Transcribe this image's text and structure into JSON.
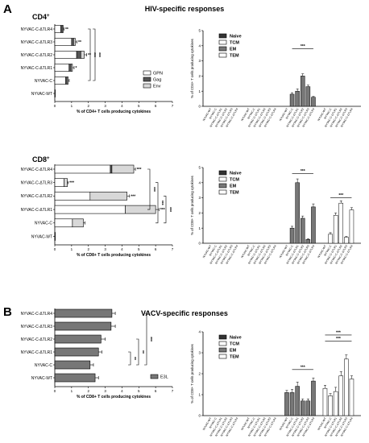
{
  "figure": {
    "sections": [
      {
        "letter": "A",
        "heading": "HIV-specific responses"
      },
      {
        "letter": "B",
        "heading": "VACV-specific responses"
      }
    ]
  },
  "chart_data": [
    {
      "id": "cd4-hbar",
      "type": "bar",
      "orientation": "horizontal",
      "stacked": true,
      "title": "CD4+",
      "xlabel": "% of CD4+ T cells producing cytokines",
      "xlim": [
        0,
        7
      ],
      "xticks": [
        "0",
        "1",
        "2",
        "3",
        "4",
        "5",
        "6",
        "7"
      ],
      "categories": [
        "NYVAC-C-ΔTLR4",
        "NYVAC-C-ΔTLR3",
        "NYVAC-C-ΔTLR2",
        "NYVAC-C-ΔTLR1",
        "NYVAC-C",
        "NYVAC-WT"
      ],
      "series": [
        {
          "name": "GPN",
          "color": "#ffffff",
          "values": [
            0.35,
            1.0,
            1.3,
            0.85,
            0.65,
            0.02
          ]
        },
        {
          "name": "Gag",
          "color": "#555555",
          "values": [
            0.1,
            0.12,
            0.25,
            0.12,
            0.08,
            0.0
          ]
        },
        {
          "name": "Env",
          "color": "#d8d8d8",
          "values": [
            0.05,
            0.1,
            0.2,
            0.08,
            0.07,
            0.0
          ]
        }
      ],
      "errors": [
        0.05,
        0.1,
        0.15,
        0.1,
        0.06,
        0.0
      ],
      "bar_marks": [
        "**",
        "**",
        "**",
        "*",
        "",
        ""
      ],
      "brackets": [
        "***",
        "***"
      ],
      "legend": "right"
    },
    {
      "id": "cd4-memory",
      "type": "bar",
      "ylabel": "% of CD4+ T cells producing cytokines",
      "ylim": [
        0,
        5
      ],
      "yticks": [
        "0",
        "1",
        "2",
        "3",
        "4",
        "5"
      ],
      "categories": [
        "NYVAC-WT",
        "NYVAC-C",
        "NYVAC-C-ΔTLR1",
        "NYVAC-C-ΔTLR2",
        "NYVAC-C-ΔTLR3",
        "NYVAC-C-ΔTLR4"
      ],
      "series": [
        {
          "name": "Naive",
          "color": "#333333",
          "values": [
            0,
            0,
            0,
            0,
            0,
            0
          ]
        },
        {
          "name": "TCM",
          "color": "#ffffff",
          "values": [
            0,
            0,
            0,
            0,
            0,
            0
          ]
        },
        {
          "name": "EM",
          "color": "#777777",
          "values": [
            0,
            0.8,
            1.0,
            2.0,
            1.3,
            0.6
          ]
        },
        {
          "name": "TEM",
          "color": "#ffffff",
          "values": [
            0,
            0,
            0,
            0,
            0,
            0
          ]
        }
      ],
      "errors": {
        "EM": [
          0,
          0.1,
          0.15,
          0.15,
          0.1,
          0.05
        ]
      },
      "brackets": [
        "***"
      ],
      "legend": "top-left"
    },
    {
      "id": "cd8-hbar",
      "type": "bar",
      "orientation": "horizontal",
      "stacked": true,
      "title": "CD8+",
      "xlabel": "% of CD8+ T cells producing cytokines",
      "xlim": [
        0,
        7
      ],
      "xticks": [
        "0",
        "1",
        "2",
        "3",
        "4",
        "5",
        "6",
        "7"
      ],
      "categories": [
        "NYVAC-C-ΔTLR4",
        "NYVAC-C-ΔTLR3",
        "NYVAC-C-ΔTLR2",
        "NYVAC-C-ΔTLR1",
        "NYVAC-C",
        "NYVAC-WT"
      ],
      "series": [
        {
          "name": "GPN",
          "color": "#ffffff",
          "values": [
            3.3,
            0.55,
            2.1,
            4.2,
            1.05,
            0.02
          ]
        },
        {
          "name": "Gag",
          "color": "#555555",
          "values": [
            0.1,
            0.0,
            0.0,
            0.0,
            0.0,
            0.0
          ]
        },
        {
          "name": "Env",
          "color": "#d8d8d8",
          "values": [
            1.3,
            0.2,
            2.2,
            1.8,
            0.65,
            0.0
          ]
        }
      ],
      "errors": [
        0.1,
        0.05,
        0.15,
        0.2,
        0.1,
        0.0
      ],
      "bar_marks": [
        "***",
        "***",
        "***",
        "***",
        "",
        ""
      ],
      "brackets": [
        "***",
        "***",
        "***"
      ],
      "legend": "none"
    },
    {
      "id": "cd8-memory",
      "type": "bar",
      "ylabel": "% of CD8+ T cells producing cytokines",
      "ylim": [
        0,
        5
      ],
      "yticks": [
        "0",
        "1",
        "2",
        "3",
        "4",
        "5"
      ],
      "categories": [
        "NYVAC-WT",
        "NYVAC-C",
        "NYVAC-C-ΔTLR1",
        "NYVAC-C-ΔTLR2",
        "NYVAC-C-ΔTLR3",
        "NYVAC-C-ΔTLR4"
      ],
      "series": [
        {
          "name": "Naive",
          "color": "#333333",
          "values": [
            0,
            0,
            0,
            0,
            0,
            0
          ]
        },
        {
          "name": "TCM",
          "color": "#ffffff",
          "values": [
            0,
            0,
            0,
            0,
            0,
            0
          ]
        },
        {
          "name": "EM",
          "color": "#777777",
          "values": [
            0,
            1.0,
            4.0,
            1.65,
            0.25,
            2.4
          ]
        },
        {
          "name": "TEM",
          "color": "#ffffff",
          "values": [
            0,
            0.6,
            1.85,
            2.65,
            0.4,
            2.2
          ]
        }
      ],
      "errors": {
        "EM": [
          0,
          0.12,
          0.25,
          0.15,
          0.05,
          0.2
        ],
        "TEM": [
          0,
          0.1,
          0.15,
          0.15,
          0.05,
          0.15
        ]
      },
      "brackets": [
        "***",
        "***"
      ],
      "legend": "top-left"
    },
    {
      "id": "vacv-hbar",
      "type": "bar",
      "orientation": "horizontal",
      "xlabel": "% of CD8+ T cells producing cytokines",
      "xlim": [
        0,
        7
      ],
      "xticks": [
        "0",
        "1",
        "2",
        "3",
        "4",
        "5",
        "6",
        "7"
      ],
      "categories": [
        "NYVAC-C-ΔTLR4",
        "NYVAC-C-ΔTLR3",
        "NYVAC-C-ΔTLR2",
        "NYVAC-C-ΔTLR1",
        "NYVAC-C",
        "NYVAC-WT"
      ],
      "series": [
        {
          "name": "E3L",
          "color": "#777777",
          "values": [
            3.4,
            3.35,
            2.75,
            2.6,
            2.1,
            2.4
          ]
        }
      ],
      "errors": [
        0.2,
        0.25,
        0.25,
        0.2,
        0.2,
        0.2
      ],
      "brackets": [
        "**",
        "**",
        "***"
      ],
      "legend": "bottom-right"
    },
    {
      "id": "vacv-memory",
      "type": "bar",
      "ylabel": "% of CD8+ T cells producing cytokines",
      "ylim": [
        0,
        4
      ],
      "yticks": [
        "0",
        "1",
        "2",
        "3",
        "4"
      ],
      "categories": [
        "NYVAC-WT",
        "NYVAC-C",
        "NYVAC-C-ΔTLR1",
        "NYVAC-C-ΔTLR2",
        "NYVAC-C-ΔTLR3",
        "NYVAC-C-ΔTLR4"
      ],
      "series": [
        {
          "name": "Naive",
          "color": "#333333",
          "values": [
            0,
            0,
            0,
            0,
            0,
            0
          ]
        },
        {
          "name": "TCM",
          "color": "#ffffff",
          "values": [
            0,
            0,
            0,
            0,
            0,
            0
          ]
        },
        {
          "name": "EM",
          "color": "#777777",
          "values": [
            1.1,
            1.1,
            1.4,
            0.7,
            0.7,
            1.65
          ]
        },
        {
          "name": "TEM",
          "color": "#ffffff",
          "values": [
            1.3,
            0.95,
            1.15,
            1.9,
            2.7,
            1.75
          ]
        }
      ],
      "errors": {
        "EM": [
          0.1,
          0.15,
          0.2,
          0.1,
          0.1,
          0.15
        ],
        "TEM": [
          0.15,
          0.1,
          0.2,
          0.2,
          0.2,
          0.15
        ]
      },
      "brackets": [
        "***",
        "***",
        "***"
      ],
      "legend": "top-left"
    }
  ]
}
